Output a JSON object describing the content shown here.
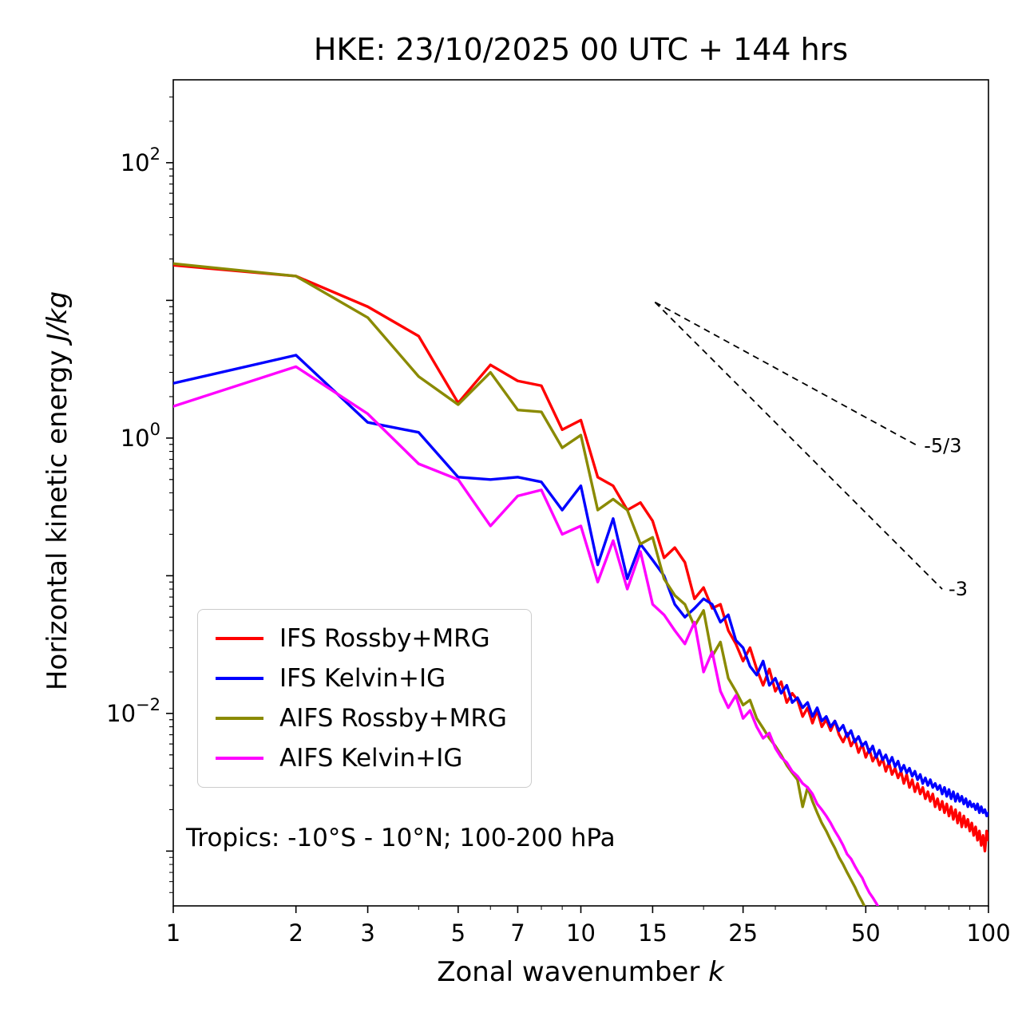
{
  "title": "HKE: 23/10/2025 00 UTC + 144 hrs",
  "xlabel": {
    "text": "Zonal wavenumber ",
    "var": "k"
  },
  "ylabel": {
    "text": "Horizontal kinetic energy ",
    "var": "J/kg"
  },
  "annotation": "Tropics: -10°S - 10°N; 100-200 hPa",
  "chart_data": {
    "type": "line",
    "xscale": "log",
    "yscale": "log",
    "xlim": [
      1,
      100
    ],
    "ylim": [
      0.0004,
      400
    ],
    "grid": false,
    "legend_position": "lower left",
    "x_major_ticks": [
      1,
      2,
      3,
      5,
      7,
      10,
      15,
      25,
      50,
      100
    ],
    "x_minor_ticks": [
      4,
      6,
      8,
      9,
      20,
      30,
      40,
      60,
      70,
      80,
      90
    ],
    "y_labeled_exponents": [
      2,
      0,
      -2
    ],
    "x_start": 1,
    "x_step": 1,
    "series": [
      {
        "name": "IFS Rossby+MRG",
        "color": "#ff0000",
        "values": [
          18,
          15,
          9,
          5.5,
          1.8,
          3.4,
          2.6,
          2.4,
          1.15,
          1.35,
          0.52,
          0.45,
          0.3,
          0.34,
          0.25,
          0.135,
          0.16,
          0.125,
          0.068,
          0.082,
          0.058,
          0.062,
          0.04,
          0.032,
          0.024,
          0.03,
          0.021,
          0.016,
          0.021,
          0.0145,
          0.017,
          0.012,
          0.014,
          0.0125,
          0.0095,
          0.011,
          0.0085,
          0.0105,
          0.008,
          0.009,
          0.0075,
          0.0088,
          0.007,
          0.0062,
          0.0072,
          0.0058,
          0.0065,
          0.0052,
          0.006,
          0.0048,
          0.0055,
          0.0045,
          0.005,
          0.0042,
          0.0047,
          0.0038,
          0.0044,
          0.0036,
          0.004,
          0.0034,
          0.0038,
          0.0031,
          0.0036,
          0.0029,
          0.0033,
          0.0027,
          0.0031,
          0.0026,
          0.0029,
          0.0024,
          0.0027,
          0.0023,
          0.0026,
          0.0021,
          0.0024,
          0.002,
          0.0023,
          0.0019,
          0.0022,
          0.0018,
          0.0021,
          0.0017,
          0.002,
          0.0016,
          0.0019,
          0.0015,
          0.0018,
          0.0015,
          0.0017,
          0.0014,
          0.0016,
          0.0013,
          0.0015,
          0.0012,
          0.0014,
          0.0011,
          0.0013,
          0.001,
          0.0014,
          0.0012
        ]
      },
      {
        "name": "IFS Kelvin+IG",
        "color": "#0000ff",
        "values": [
          2.5,
          4.0,
          1.3,
          1.1,
          0.52,
          0.5,
          0.52,
          0.48,
          0.3,
          0.45,
          0.12,
          0.26,
          0.095,
          0.17,
          0.13,
          0.1,
          0.062,
          0.05,
          0.058,
          0.068,
          0.062,
          0.046,
          0.052,
          0.034,
          0.03,
          0.022,
          0.019,
          0.024,
          0.016,
          0.018,
          0.014,
          0.016,
          0.012,
          0.013,
          0.011,
          0.012,
          0.0095,
          0.011,
          0.0088,
          0.0095,
          0.008,
          0.0088,
          0.0075,
          0.0082,
          0.0068,
          0.0075,
          0.0062,
          0.0068,
          0.0058,
          0.0062,
          0.0052,
          0.0058,
          0.0048,
          0.0054,
          0.0046,
          0.005,
          0.0043,
          0.0048,
          0.0041,
          0.0045,
          0.0038,
          0.0042,
          0.0037,
          0.004,
          0.0035,
          0.0038,
          0.0033,
          0.0036,
          0.0031,
          0.0034,
          0.003,
          0.0033,
          0.0029,
          0.0031,
          0.0028,
          0.003,
          0.0026,
          0.0029,
          0.0025,
          0.0028,
          0.0024,
          0.0027,
          0.0023,
          0.0026,
          0.0023,
          0.0025,
          0.0022,
          0.0024,
          0.0021,
          0.0023,
          0.0021,
          0.0022,
          0.002,
          0.0022,
          0.0019,
          0.0021,
          0.0019,
          0.002,
          0.0018,
          0.0019
        ]
      },
      {
        "name": "AIFS Rossby+MRG",
        "color": "#8a8a00",
        "values": [
          18.5,
          15,
          7.5,
          2.8,
          1.75,
          3.0,
          1.6,
          1.55,
          0.85,
          1.05,
          0.3,
          0.36,
          0.3,
          0.17,
          0.19,
          0.095,
          0.072,
          0.062,
          0.043,
          0.056,
          0.026,
          0.033,
          0.018,
          0.0145,
          0.0115,
          0.0125,
          0.0092,
          0.0078,
          0.0066,
          0.0058,
          0.005,
          0.0042,
          0.0037,
          0.0033,
          0.0021,
          0.0029,
          0.0023,
          0.0019,
          0.0016,
          0.0014,
          0.0012,
          0.00105,
          0.0009,
          0.0008,
          0.0007,
          0.00062,
          0.00055,
          0.00048,
          0.00043,
          0.00038,
          0.00033
        ]
      },
      {
        "name": "AIFS Kelvin+IG",
        "color": "#ff00ff",
        "values": [
          1.7,
          3.3,
          1.5,
          0.65,
          0.5,
          0.23,
          0.38,
          0.42,
          0.2,
          0.23,
          0.09,
          0.18,
          0.08,
          0.15,
          0.062,
          0.052,
          0.04,
          0.032,
          0.046,
          0.02,
          0.028,
          0.0145,
          0.011,
          0.0135,
          0.0092,
          0.0105,
          0.008,
          0.0066,
          0.0072,
          0.0056,
          0.0048,
          0.0044,
          0.0038,
          0.0035,
          0.0031,
          0.0029,
          0.0026,
          0.0022,
          0.002,
          0.0018,
          0.0016,
          0.0014,
          0.00125,
          0.0011,
          0.00095,
          0.00088,
          0.00078,
          0.0007,
          0.00064,
          0.00056,
          0.0005,
          0.00046,
          0.00042,
          0.00038,
          0.00035,
          0.00032,
          0.0003,
          0.00028
        ]
      }
    ],
    "reference_lines": [
      {
        "label": "-5/3",
        "x": [
          15.2,
          67
        ],
        "y": [
          9.7,
          0.88
        ]
      },
      {
        "label": "-3",
        "x": [
          15.2,
          77
        ],
        "y": [
          9.7,
          0.08
        ]
      }
    ]
  }
}
